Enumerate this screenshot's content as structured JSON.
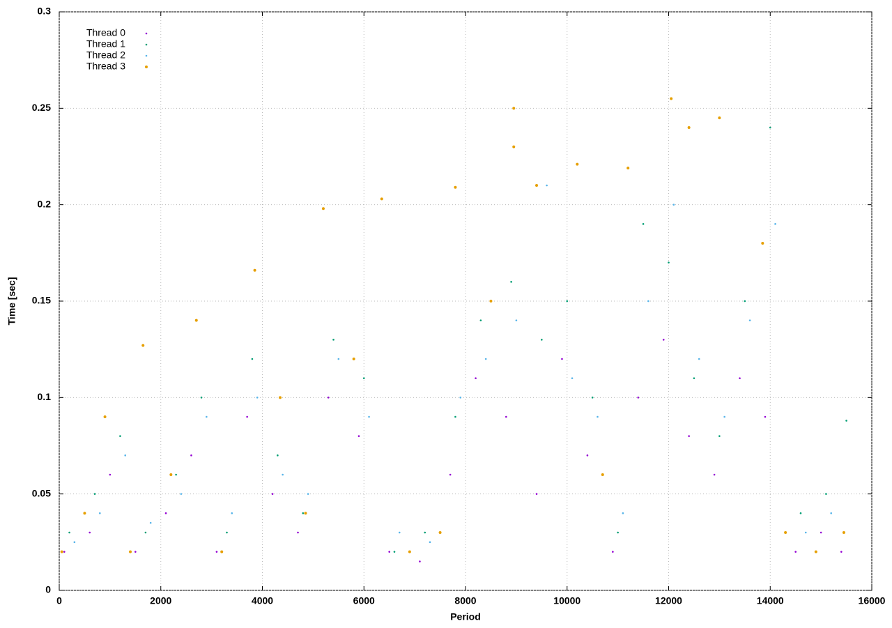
{
  "chart_data": {
    "type": "scatter",
    "x_label": "Period",
    "y_label": "Time [sec]",
    "xlim": [
      0,
      16000
    ],
    "xticks": [
      0,
      2000,
      4000,
      6000,
      8000,
      10000,
      12000,
      14000,
      16000
    ],
    "ylim": [
      0,
      0.3
    ],
    "yticks": [
      0,
      0.05,
      0.1,
      0.15,
      0.2,
      0.25,
      0.3
    ],
    "grid": true,
    "legend": "top-left",
    "series": [
      {
        "name": "Thread 0",
        "color": "#9400d3",
        "x": [
          100,
          600,
          1000,
          1500,
          2100,
          2600,
          3100,
          3700,
          4200,
          4700,
          5300,
          5900,
          6500,
          7100,
          7700,
          8200,
          8800,
          9400,
          9900,
          10400,
          10900,
          11400,
          11900,
          12400,
          12900,
          13400,
          13900,
          14500,
          15000,
          15400
        ],
        "values": [
          0.02,
          0.03,
          0.06,
          0.02,
          0.04,
          0.07,
          0.02,
          0.09,
          0.05,
          0.03,
          0.1,
          0.08,
          0.02,
          0.015,
          0.06,
          0.11,
          0.09,
          0.05,
          0.12,
          0.07,
          0.02,
          0.1,
          0.13,
          0.08,
          0.06,
          0.11,
          0.09,
          0.02,
          0.03,
          0.02
        ]
      },
      {
        "name": "Thread 1",
        "color": "#009e73",
        "x": [
          200,
          700,
          1200,
          1700,
          2300,
          2800,
          3300,
          3800,
          4300,
          4800,
          5400,
          6000,
          6600,
          7200,
          7800,
          8300,
          8900,
          9500,
          10000,
          10500,
          11000,
          11500,
          12000,
          12500,
          13000,
          13500,
          14000,
          14600,
          15100,
          15500
        ],
        "values": [
          0.03,
          0.05,
          0.08,
          0.03,
          0.06,
          0.1,
          0.03,
          0.12,
          0.07,
          0.04,
          0.13,
          0.11,
          0.02,
          0.03,
          0.09,
          0.14,
          0.16,
          0.13,
          0.15,
          0.1,
          0.03,
          0.19,
          0.17,
          0.11,
          0.08,
          0.15,
          0.24,
          0.04,
          0.05,
          0.088
        ]
      },
      {
        "name": "Thread 2",
        "color": "#56b4e9",
        "x": [
          300,
          800,
          1300,
          1800,
          2400,
          2900,
          3400,
          3900,
          4400,
          4900,
          5500,
          6100,
          6700,
          7300,
          7900,
          8400,
          9000,
          9600,
          10100,
          10600,
          11100,
          11600,
          12100,
          12600,
          13100,
          13600,
          14100,
          14700,
          15200,
          15450
        ],
        "values": [
          0.025,
          0.04,
          0.07,
          0.035,
          0.05,
          0.09,
          0.04,
          0.1,
          0.06,
          0.05,
          0.12,
          0.09,
          0.03,
          0.025,
          0.1,
          0.12,
          0.14,
          0.21,
          0.11,
          0.09,
          0.04,
          0.15,
          0.2,
          0.12,
          0.09,
          0.14,
          0.19,
          0.03,
          0.04,
          0.03
        ]
      },
      {
        "name": "Thread 3",
        "color": "#e69f00",
        "x": [
          50,
          500,
          900,
          1400,
          1650,
          2200,
          2700,
          3200,
          3850,
          4350,
          4850,
          5200,
          5800,
          6350,
          6900,
          7500,
          7800,
          8500,
          8950,
          8950,
          9400,
          10200,
          10700,
          11200,
          12050,
          12400,
          13000,
          13850,
          14300,
          14900,
          15450
        ],
        "values": [
          0.02,
          0.04,
          0.09,
          0.02,
          0.127,
          0.06,
          0.14,
          0.02,
          0.166,
          0.1,
          0.04,
          0.198,
          0.12,
          0.203,
          0.02,
          0.03,
          0.209,
          0.15,
          0.25,
          0.23,
          0.21,
          0.221,
          0.06,
          0.219,
          0.255,
          0.24,
          0.245,
          0.18,
          0.03,
          0.02,
          0.03
        ]
      }
    ]
  }
}
